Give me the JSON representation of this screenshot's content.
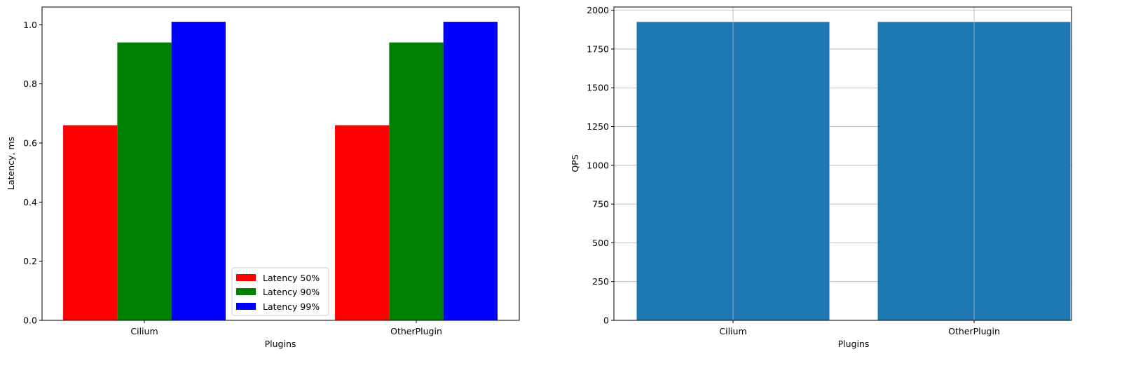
{
  "chart_data": [
    {
      "type": "bar",
      "categories": [
        "Cilium",
        "OtherPlugin"
      ],
      "series": [
        {
          "name": "Latency 50%",
          "values": [
            0.66,
            0.66
          ],
          "color": "#ff0000"
        },
        {
          "name": "Latency 90%",
          "values": [
            0.94,
            0.94
          ],
          "color": "#008000"
        },
        {
          "name": "Latency 99%",
          "values": [
            1.01,
            1.01
          ],
          "color": "#0000ff"
        }
      ],
      "xlabel": "Plugins",
      "ylabel": "Latency, ms",
      "ylim": [
        0,
        1.06
      ],
      "yticks": [
        "0.0",
        "0.2",
        "0.4",
        "0.6",
        "0.8",
        "1.0"
      ],
      "grid": false,
      "legend": "lower center"
    },
    {
      "type": "bar",
      "categories": [
        "Cilium",
        "OtherPlugin"
      ],
      "series": [
        {
          "values": [
            1925,
            1925
          ],
          "color": "#1f77b4"
        }
      ],
      "xlabel": "Plugins",
      "ylabel": "QPS",
      "ylim": [
        0,
        2021
      ],
      "yticks": [
        "0",
        "250",
        "500",
        "750",
        "1000",
        "1250",
        "1500",
        "1750",
        "2000"
      ],
      "grid": true
    }
  ]
}
